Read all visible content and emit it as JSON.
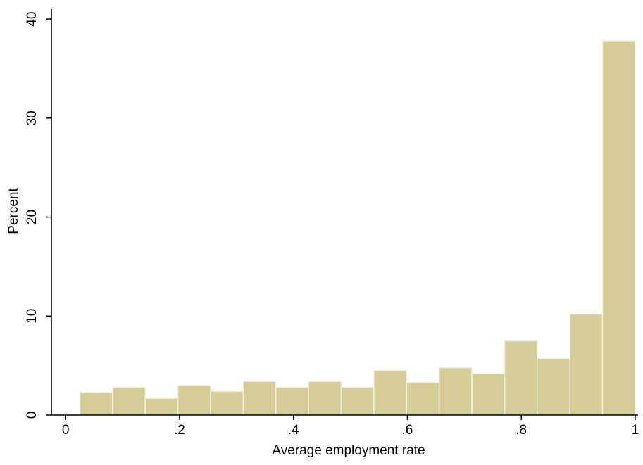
{
  "chart_data": {
    "type": "histogram",
    "xlabel": "Average employment rate",
    "ylabel": "Percent",
    "bins": [
      0.025,
      0.0824,
      0.1397,
      0.197,
      0.2544,
      0.3118,
      0.3691,
      0.4264,
      0.4838,
      0.5412,
      0.5985,
      0.6558,
      0.7132,
      0.7706,
      0.8279,
      0.8852,
      0.9426,
      1.0
    ],
    "values": [
      2.3,
      2.8,
      1.7,
      3.0,
      2.4,
      3.4,
      2.8,
      3.4,
      2.8,
      4.5,
      3.3,
      4.8,
      4.2,
      7.5,
      5.7,
      10.2,
      37.8
    ],
    "color": "#d5cd98",
    "xlim": [
      -0.025,
      1.005
    ],
    "ylim": [
      0,
      41
    ],
    "xticks": [
      0,
      {
        "value": 0.2,
        "label": ".2"
      },
      {
        "value": 0.4,
        "label": ".4"
      },
      {
        "value": 0.6,
        "label": ".6"
      },
      {
        "value": 0.8,
        "label": ".8"
      },
      1
    ],
    "yticks": [
      0,
      10,
      20,
      30,
      40
    ]
  }
}
